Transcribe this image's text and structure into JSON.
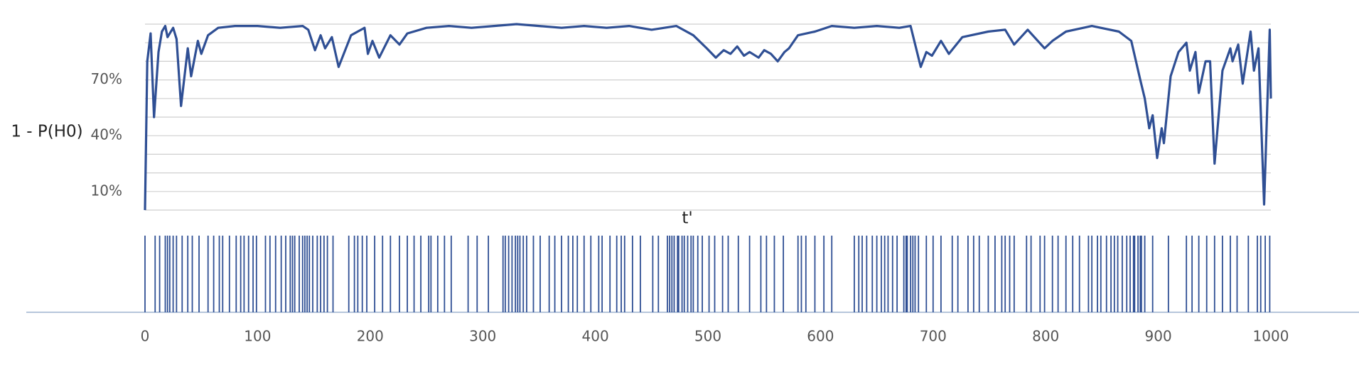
{
  "chart_data": [
    {
      "type": "line",
      "y_label": "1 - P(H0)",
      "x_label": "t'",
      "color": "#2f4f94",
      "xlim": [
        0,
        1000
      ],
      "ylim": [
        0,
        100
      ],
      "yticks": [
        {
          "value": 10,
          "label": "10%"
        },
        {
          "value": 40,
          "label": "40%"
        },
        {
          "value": 70,
          "label": "70%"
        }
      ],
      "grid_lines": [
        0,
        10,
        20,
        30,
        40,
        50,
        60,
        70,
        80,
        90,
        100
      ],
      "x": [
        0,
        2,
        5,
        8,
        12,
        15,
        18,
        20,
        25,
        28,
        32,
        38,
        41,
        47,
        50,
        56,
        65,
        80,
        100,
        120,
        140,
        145,
        151,
        156,
        160,
        166,
        172,
        183,
        195,
        198,
        202,
        208,
        218,
        226,
        233,
        250,
        270,
        290,
        310,
        330,
        350,
        370,
        390,
        410,
        430,
        450,
        472,
        487,
        499,
        507,
        514,
        520,
        526,
        532,
        537,
        545,
        550,
        556,
        562,
        568,
        572,
        580,
        595,
        610,
        630,
        650,
        670,
        680,
        689,
        694,
        699,
        707,
        714,
        726,
        749,
        764,
        772,
        784,
        799,
        806,
        818,
        841,
        865,
        876,
        884,
        888,
        892,
        895,
        899,
        903,
        905,
        911,
        918,
        925,
        928,
        933,
        936,
        942,
        946,
        950,
        957,
        964,
        966,
        971,
        975,
        982,
        985,
        989,
        994,
        999,
        1000
      ],
      "values": [
        0,
        80,
        95,
        50,
        85,
        96,
        99,
        93,
        98,
        92,
        56,
        87,
        72,
        91,
        84,
        94,
        98,
        99,
        99,
        98,
        99,
        97,
        86,
        94,
        87,
        93,
        77,
        94,
        98,
        84,
        91,
        82,
        94,
        89,
        95,
        98,
        99,
        98,
        99,
        100,
        99,
        98,
        99,
        98,
        99,
        97,
        99,
        94,
        87,
        82,
        86,
        84,
        88,
        83,
        85,
        82,
        86,
        84,
        80,
        85,
        87,
        94,
        96,
        99,
        98,
        99,
        98,
        99,
        77,
        85,
        83,
        91,
        84,
        93,
        96,
        97,
        89,
        97,
        87,
        91,
        96,
        99,
        96,
        91,
        70,
        60,
        44,
        51,
        28,
        44,
        36,
        72,
        85,
        90,
        75,
        85,
        63,
        80,
        80,
        25,
        75,
        87,
        80,
        89,
        68,
        96,
        75,
        87,
        3,
        97,
        60
      ]
    },
    {
      "type": "events",
      "color": "#2f4f94",
      "xlim": [
        0,
        1000
      ],
      "xticks": [
        0,
        100,
        200,
        300,
        400,
        500,
        600,
        700,
        800,
        900,
        1000
      ],
      "values": [
        0,
        9,
        13,
        18,
        20,
        22,
        25,
        28,
        33,
        38,
        42,
        48,
        56,
        61,
        66,
        69,
        75,
        81,
        85,
        88,
        92,
        96,
        99,
        107,
        111,
        116,
        121,
        125,
        129,
        131,
        133,
        137,
        140,
        142,
        144,
        146,
        149,
        153,
        156,
        159,
        162,
        167,
        181,
        186,
        189,
        193,
        197,
        204,
        211,
        218,
        226,
        233,
        239,
        245,
        252,
        254,
        260,
        266,
        272,
        287,
        295,
        305,
        318,
        320,
        323,
        326,
        329,
        331,
        333,
        336,
        339,
        345,
        351,
        359,
        364,
        370,
        376,
        380,
        384,
        390,
        396,
        403,
        406,
        413,
        419,
        423,
        426,
        433,
        440,
        451,
        456,
        464,
        466,
        468,
        470,
        473,
        474,
        477,
        479,
        482,
        485,
        487,
        491,
        495,
        501,
        506,
        513,
        518,
        527,
        537,
        547,
        552,
        559,
        567,
        580,
        583,
        587,
        595,
        603,
        610,
        630,
        634,
        637,
        641,
        646,
        650,
        654,
        657,
        660,
        664,
        668,
        674,
        676,
        677,
        680,
        682,
        684,
        687,
        694,
        700,
        707,
        717,
        722,
        731,
        736,
        741,
        749,
        755,
        761,
        764,
        768,
        772,
        783,
        787,
        795,
        799,
        806,
        811,
        818,
        824,
        830,
        838,
        841,
        846,
        849,
        854,
        858,
        861,
        864,
        868,
        872,
        875,
        878,
        879,
        882,
        884,
        885,
        888,
        895,
        909,
        925,
        930,
        936,
        943,
        950,
        957,
        964,
        970,
        980,
        988,
        991,
        995,
        999
      ]
    }
  ]
}
